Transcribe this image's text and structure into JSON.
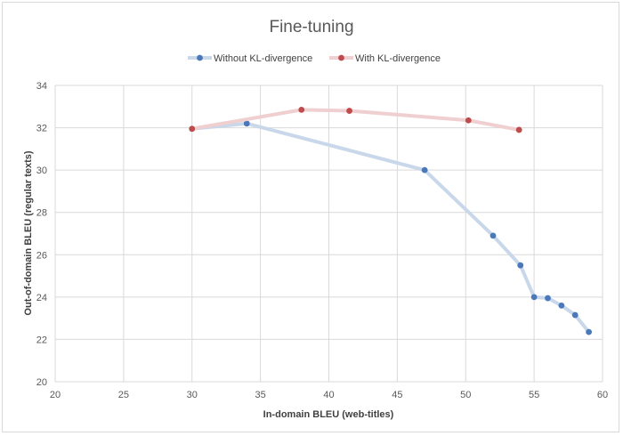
{
  "chart_data": {
    "type": "line",
    "title": "Fine-tuning",
    "xlabel": "In-domain BLEU (web-titles)",
    "ylabel": "Out-of-domain BLEU (regular texts)",
    "xlim": [
      20,
      60
    ],
    "ylim": [
      20,
      34
    ],
    "xticks": [
      20,
      25,
      30,
      35,
      40,
      45,
      50,
      55,
      60
    ],
    "yticks": [
      20,
      22,
      24,
      26,
      28,
      30,
      32,
      34
    ],
    "grid": true,
    "legend_position": "top",
    "series": [
      {
        "name": "Without KL-divergence",
        "line_color": "#c9d7ea",
        "marker_color": "#4a78b8",
        "points": [
          {
            "x": 30,
            "y": 31.95
          },
          {
            "x": 34,
            "y": 32.2
          },
          {
            "x": 47,
            "y": 30.0
          },
          {
            "x": 52,
            "y": 26.9
          },
          {
            "x": 54,
            "y": 25.5
          },
          {
            "x": 55,
            "y": 24.0
          },
          {
            "x": 56,
            "y": 23.95
          },
          {
            "x": 57,
            "y": 23.6
          },
          {
            "x": 58,
            "y": 23.15
          },
          {
            "x": 59,
            "y": 22.35
          }
        ]
      },
      {
        "name": "With KL-divergence",
        "line_color": "#efcfd0",
        "marker_color": "#bf4c4c",
        "points": [
          {
            "x": 30,
            "y": 31.95
          },
          {
            "x": 38,
            "y": 32.85
          },
          {
            "x": 41.5,
            "y": 32.8
          },
          {
            "x": 50.2,
            "y": 32.35
          },
          {
            "x": 53.9,
            "y": 31.9
          }
        ]
      }
    ]
  }
}
